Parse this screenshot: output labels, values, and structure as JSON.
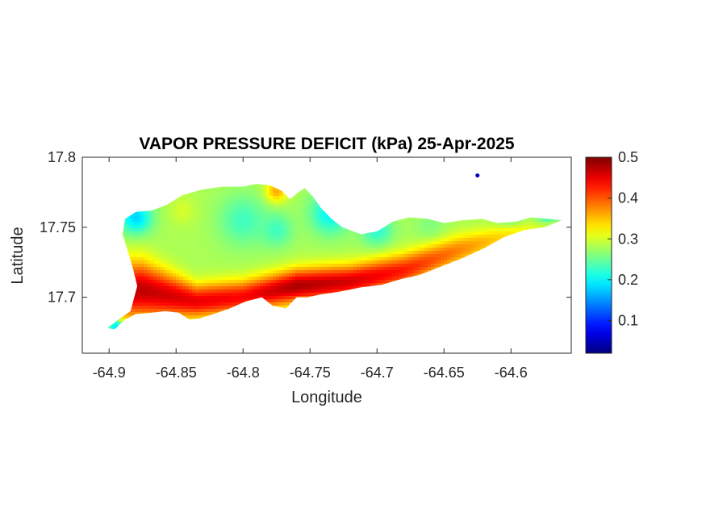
{
  "chart_data": {
    "type": "heatmap",
    "title": "VAPOR PRESSURE DEFICIT (kPa) 25-Apr-2025",
    "xlabel": "Longitude",
    "ylabel": "Latitude",
    "xlim": [
      -64.92,
      -64.555
    ],
    "ylim": [
      17.66,
      17.8
    ],
    "xticks": [
      -64.9,
      -64.85,
      -64.8,
      -64.75,
      -64.7,
      -64.65,
      -64.6
    ],
    "xtick_labels": [
      "-64.9",
      "-64.85",
      "-64.8",
      "-64.75",
      "-64.7",
      "-64.65",
      "-64.6"
    ],
    "yticks": [
      17.7,
      17.75,
      17.8
    ],
    "ytick_labels": [
      "17.7",
      "17.75",
      "17.8"
    ],
    "colorbar": {
      "colormap": "jet",
      "range": [
        0.02,
        0.5
      ],
      "ticks": [
        0.1,
        0.2,
        0.3,
        0.4,
        0.5
      ],
      "tick_labels": [
        "0.1",
        "0.2",
        "0.3",
        "0.4",
        "0.5"
      ]
    },
    "outline": [
      [
        -64.9,
        17.679
      ],
      [
        -64.893,
        17.684
      ],
      [
        -64.884,
        17.69
      ],
      [
        -64.879,
        17.708
      ],
      [
        -64.882,
        17.72
      ],
      [
        -64.886,
        17.733
      ],
      [
        -64.89,
        17.745
      ],
      [
        -64.888,
        17.756
      ],
      [
        -64.88,
        17.761
      ],
      [
        -64.868,
        17.762
      ],
      [
        -64.857,
        17.766
      ],
      [
        -64.845,
        17.773
      ],
      [
        -64.83,
        17.777
      ],
      [
        -64.815,
        17.779
      ],
      [
        -64.8,
        17.779
      ],
      [
        -64.79,
        17.781
      ],
      [
        -64.78,
        17.78
      ],
      [
        -64.771,
        17.776
      ],
      [
        -64.765,
        17.77
      ],
      [
        -64.76,
        17.774
      ],
      [
        -64.754,
        17.778
      ],
      [
        -64.748,
        17.772
      ],
      [
        -64.742,
        17.764
      ],
      [
        -64.734,
        17.756
      ],
      [
        -64.726,
        17.75
      ],
      [
        -64.712,
        17.745
      ],
      [
        -64.7,
        17.747
      ],
      [
        -64.688,
        17.754
      ],
      [
        -64.676,
        17.757
      ],
      [
        -64.662,
        17.756
      ],
      [
        -64.65,
        17.753
      ],
      [
        -64.636,
        17.755
      ],
      [
        -64.622,
        17.756
      ],
      [
        -64.61,
        17.753
      ],
      [
        -64.596,
        17.754
      ],
      [
        -64.585,
        17.757
      ],
      [
        -64.572,
        17.756
      ],
      [
        -64.562,
        17.755
      ],
      [
        -64.575,
        17.75
      ],
      [
        -64.59,
        17.748
      ],
      [
        -64.605,
        17.743
      ],
      [
        -64.62,
        17.735
      ],
      [
        -64.636,
        17.728
      ],
      [
        -64.652,
        17.722
      ],
      [
        -64.668,
        17.716
      ],
      [
        -64.682,
        17.713
      ],
      [
        -64.696,
        17.709
      ],
      [
        -64.712,
        17.707
      ],
      [
        -64.728,
        17.704
      ],
      [
        -64.742,
        17.702
      ],
      [
        -64.752,
        17.7
      ],
      [
        -64.76,
        17.7
      ],
      [
        -64.768,
        17.692
      ],
      [
        -64.778,
        17.694
      ],
      [
        -64.786,
        17.7
      ],
      [
        -64.798,
        17.697
      ],
      [
        -64.81,
        17.692
      ],
      [
        -64.822,
        17.688
      ],
      [
        -64.832,
        17.685
      ],
      [
        -64.84,
        17.684
      ],
      [
        -64.848,
        17.689
      ],
      [
        -64.858,
        17.69
      ],
      [
        -64.868,
        17.689
      ],
      [
        -64.88,
        17.688
      ],
      [
        -64.888,
        17.684
      ],
      [
        -64.896,
        17.677
      ],
      [
        -64.901,
        17.678
      ]
    ],
    "islet": {
      "lon": -64.625,
      "lat": 17.787,
      "value": 0.05
    },
    "field": {
      "base_north": 0.28,
      "warm_band": [
        {
          "lon": -64.875,
          "lat_center": 17.705,
          "width": 0.02,
          "peak": 0.47
        },
        {
          "lon": -64.835,
          "lat_center": 17.697,
          "width": 0.012,
          "peak": 0.45
        },
        {
          "lon": -64.8,
          "lat_center": 17.7,
          "width": 0.012,
          "peak": 0.44
        },
        {
          "lon": -64.76,
          "lat_center": 17.708,
          "width": 0.012,
          "peak": 0.48
        },
        {
          "lon": -64.72,
          "lat_center": 17.711,
          "width": 0.012,
          "peak": 0.46
        },
        {
          "lon": -64.68,
          "lat_center": 17.719,
          "width": 0.012,
          "peak": 0.43
        },
        {
          "lon": -64.64,
          "lat_center": 17.733,
          "width": 0.011,
          "peak": 0.38
        },
        {
          "lon": -64.6,
          "lat_center": 17.745,
          "width": 0.008,
          "peak": 0.33
        },
        {
          "lon": -64.565,
          "lat_center": 17.752,
          "width": 0.005,
          "peak": 0.28
        }
      ],
      "spots": [
        {
          "lon": -64.88,
          "lat": 17.757,
          "r": 0.012,
          "value": 0.18
        },
        {
          "lon": -64.8,
          "lat": 17.755,
          "r": 0.018,
          "value": 0.23
        },
        {
          "lon": -64.775,
          "lat": 17.748,
          "r": 0.012,
          "value": 0.23
        },
        {
          "lon": -64.735,
          "lat": 17.76,
          "r": 0.015,
          "value": 0.2
        },
        {
          "lon": -64.7,
          "lat": 17.748,
          "r": 0.012,
          "value": 0.22
        },
        {
          "lon": -64.66,
          "lat": 17.75,
          "r": 0.012,
          "value": 0.26
        },
        {
          "lon": -64.6,
          "lat": 17.752,
          "r": 0.01,
          "value": 0.24
        },
        {
          "lon": -64.572,
          "lat": 17.755,
          "r": 0.008,
          "value": 0.19
        },
        {
          "lon": -64.775,
          "lat": 17.776,
          "r": 0.008,
          "value": 0.36
        },
        {
          "lon": -64.845,
          "lat": 17.762,
          "r": 0.01,
          "value": 0.3
        },
        {
          "lon": -64.895,
          "lat": 17.68,
          "r": 0.006,
          "value": 0.12
        }
      ]
    }
  }
}
